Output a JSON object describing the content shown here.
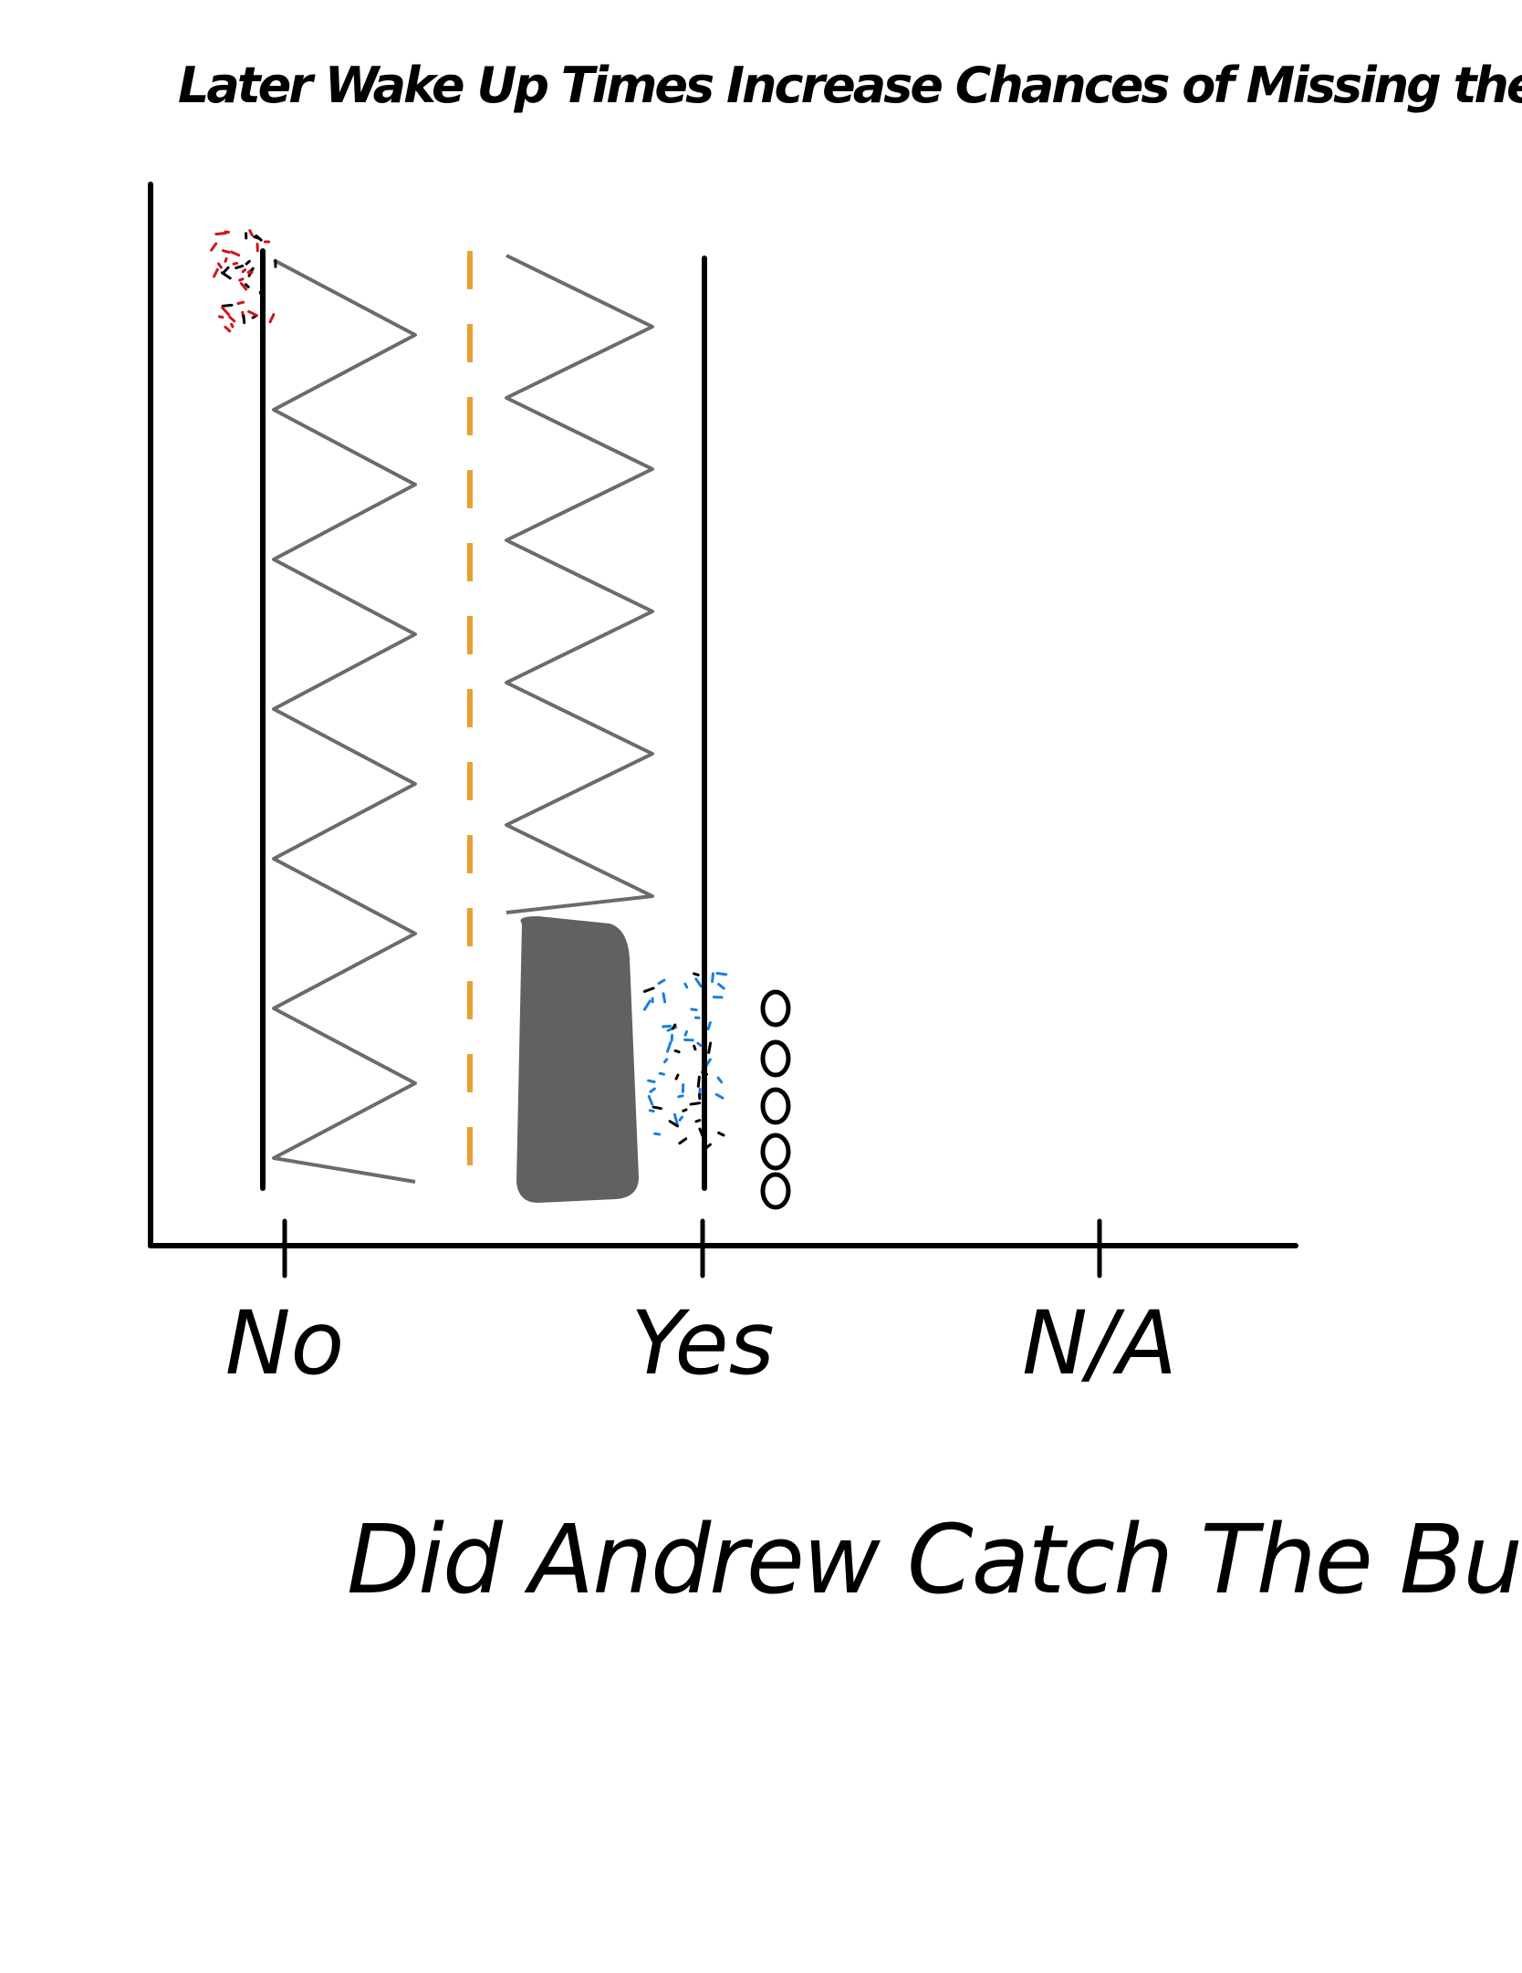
{
  "chart_data": {
    "type": "bar",
    "title": "Later Wake Up Times Increase Chances of Missing the Bus",
    "xlabel": "Did Andrew Catch The Bus?",
    "ylabel": "",
    "categories": [
      "No",
      "Yes",
      "N/A"
    ],
    "grid": false,
    "annotation_marks": [
      "o",
      "o",
      "o",
      "o",
      "o"
    ],
    "colors": {
      "axis": "#000000",
      "hatch": "#6b6b6b",
      "solid_block": "#616161",
      "dashed_line": "#e8a033",
      "speck_red": "#d0141c",
      "speck_blue": "#1a7fe0"
    }
  }
}
